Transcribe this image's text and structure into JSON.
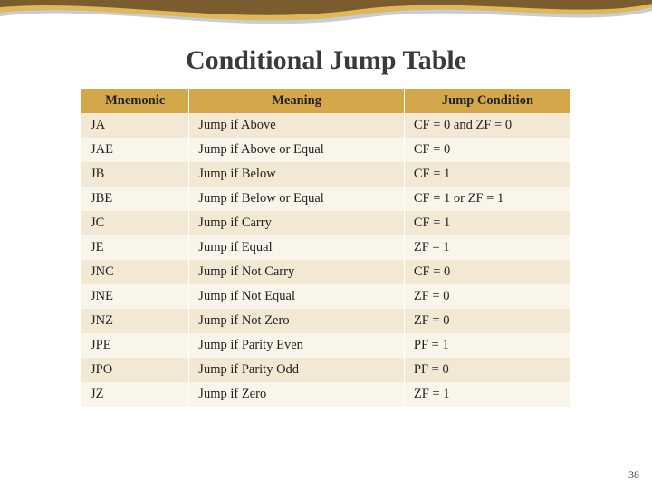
{
  "title": "Conditional Jump Table",
  "page_number": "38",
  "columns": [
    "Mnemonic",
    "Meaning",
    "Jump Condition"
  ],
  "rows": [
    {
      "mnemonic": "JA",
      "meaning": "Jump if Above",
      "condition": "CF = 0 and ZF = 0"
    },
    {
      "mnemonic": "JAE",
      "meaning": "Jump if Above or Equal",
      "condition": "CF = 0"
    },
    {
      "mnemonic": "JB",
      "meaning": "Jump if Below",
      "condition": "CF = 1"
    },
    {
      "mnemonic": "JBE",
      "meaning": "Jump if Below or Equal",
      "condition": "CF = 1 or ZF = 1"
    },
    {
      "mnemonic": "JC",
      "meaning": "Jump if Carry",
      "condition": "CF = 1"
    },
    {
      "mnemonic": "JE",
      "meaning": "Jump if Equal",
      "condition": "ZF = 1"
    },
    {
      "mnemonic": "JNC",
      "meaning": "Jump if Not Carry",
      "condition": "CF = 0"
    },
    {
      "mnemonic": "JNE",
      "meaning": "Jump if Not Equal",
      "condition": "ZF = 0"
    },
    {
      "mnemonic": "JNZ",
      "meaning": "Jump if Not Zero",
      "condition": "ZF = 0"
    },
    {
      "mnemonic": "JPE",
      "meaning": "Jump if Parity Even",
      "condition": "PF = 1"
    },
    {
      "mnemonic": "JPO",
      "meaning": "Jump if Parity Odd",
      "condition": "PF = 0"
    },
    {
      "mnemonic": "JZ",
      "meaning": "Jump if Zero",
      "condition": "ZF = 1"
    }
  ],
  "style": {
    "header_bg": "#d4a84a",
    "row_odd_bg": "#f3e8d3",
    "row_even_bg": "#faf5ea",
    "title_color": "#3a3a3a",
    "font_family": "Georgia, serif",
    "title_fontsize": 30,
    "body_fontsize": 14.5,
    "wave_colors": [
      "#7a5c2e",
      "#e0b85a",
      "#c7cdd6"
    ]
  }
}
